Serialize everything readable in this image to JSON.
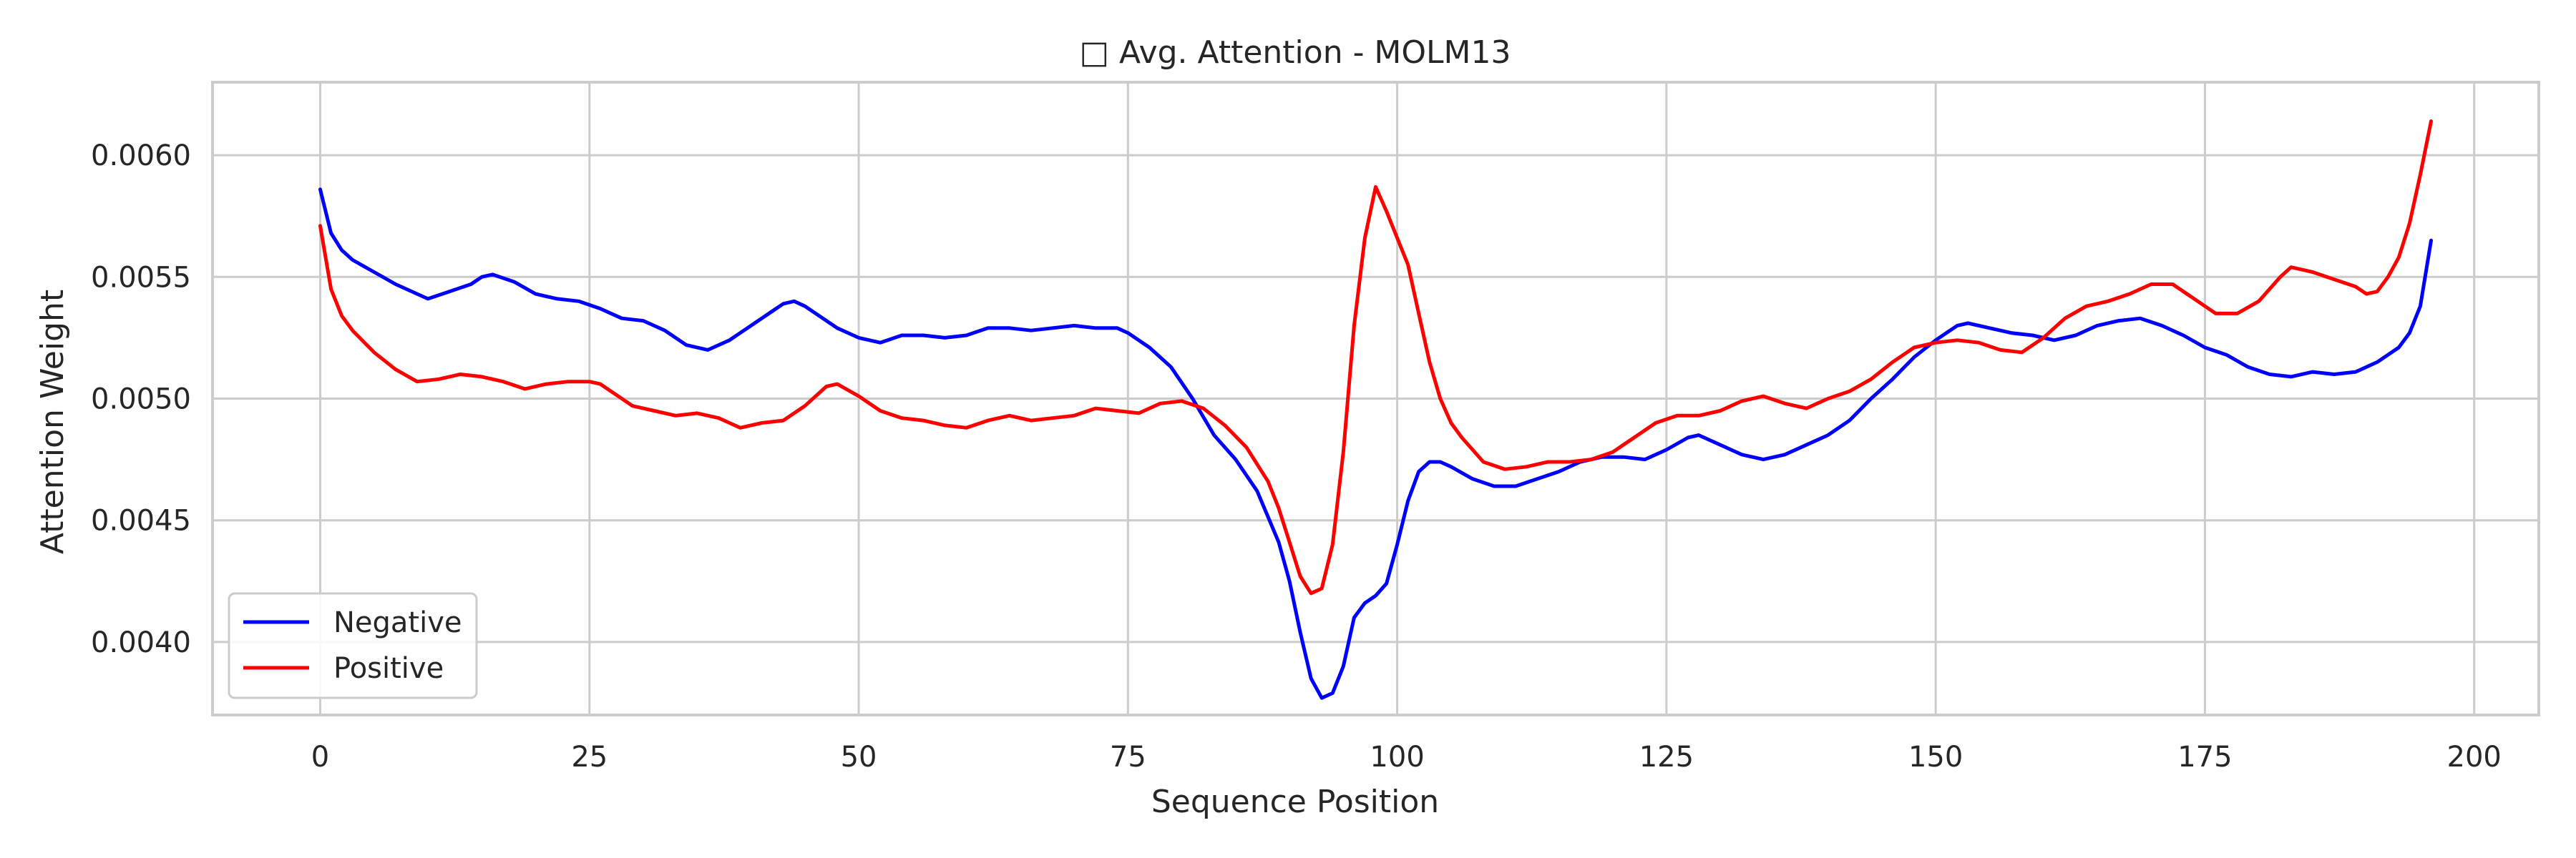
{
  "chart_data": {
    "type": "line",
    "title": "□ Avg. Attention - MOLM13",
    "xlabel": "Sequence Position",
    "ylabel": "Attention Weight",
    "xlim": [
      -10,
      206
    ],
    "ylim": [
      0.0037,
      0.0063
    ],
    "xticks": [
      0,
      25,
      50,
      75,
      100,
      125,
      150,
      175,
      200
    ],
    "xtick_labels": [
      "0",
      "25",
      "50",
      "75",
      "100",
      "125",
      "150",
      "175",
      "200"
    ],
    "yticks": [
      0.004,
      0.0045,
      0.005,
      0.0055,
      0.006
    ],
    "ytick_labels": [
      "0.0040",
      "0.0045",
      "0.0050",
      "0.0055",
      "0.0060"
    ],
    "grid": true,
    "legend_position": "lower-left",
    "series": [
      {
        "name": "Negative",
        "color": "#0000ff",
        "points": [
          [
            0,
            0.00586
          ],
          [
            1,
            0.00568
          ],
          [
            2,
            0.00561
          ],
          [
            3,
            0.00557
          ],
          [
            5,
            0.00552
          ],
          [
            7,
            0.00547
          ],
          [
            9,
            0.00543
          ],
          [
            10,
            0.00541
          ],
          [
            12,
            0.00544
          ],
          [
            14,
            0.00547
          ],
          [
            15,
            0.0055
          ],
          [
            16,
            0.00551
          ],
          [
            18,
            0.00548
          ],
          [
            20,
            0.00543
          ],
          [
            22,
            0.00541
          ],
          [
            24,
            0.0054
          ],
          [
            26,
            0.00537
          ],
          [
            28,
            0.00533
          ],
          [
            30,
            0.00532
          ],
          [
            32,
            0.00528
          ],
          [
            34,
            0.00522
          ],
          [
            36,
            0.0052
          ],
          [
            38,
            0.00524
          ],
          [
            40,
            0.0053
          ],
          [
            42,
            0.00536
          ],
          [
            43,
            0.00539
          ],
          [
            44,
            0.0054
          ],
          [
            45,
            0.00538
          ],
          [
            46,
            0.00535
          ],
          [
            48,
            0.00529
          ],
          [
            50,
            0.00525
          ],
          [
            52,
            0.00523
          ],
          [
            54,
            0.00526
          ],
          [
            56,
            0.00526
          ],
          [
            58,
            0.00525
          ],
          [
            60,
            0.00526
          ],
          [
            62,
            0.00529
          ],
          [
            64,
            0.00529
          ],
          [
            66,
            0.00528
          ],
          [
            68,
            0.00529
          ],
          [
            70,
            0.0053
          ],
          [
            72,
            0.00529
          ],
          [
            74,
            0.00529
          ],
          [
            75,
            0.00527
          ],
          [
            77,
            0.00521
          ],
          [
            79,
            0.00513
          ],
          [
            81,
            0.005
          ],
          [
            83,
            0.00485
          ],
          [
            85,
            0.00475
          ],
          [
            87,
            0.00462
          ],
          [
            89,
            0.00441
          ],
          [
            90,
            0.00425
          ],
          [
            91,
            0.00404
          ],
          [
            92,
            0.00385
          ],
          [
            93,
            0.00377
          ],
          [
            94,
            0.00379
          ],
          [
            95,
            0.0039
          ],
          [
            96,
            0.0041
          ],
          [
            97,
            0.00416
          ],
          [
            98,
            0.00419
          ],
          [
            99,
            0.00424
          ],
          [
            100,
            0.0044
          ],
          [
            101,
            0.00458
          ],
          [
            102,
            0.0047
          ],
          [
            103,
            0.00474
          ],
          [
            104,
            0.00474
          ],
          [
            105,
            0.00472
          ],
          [
            107,
            0.00467
          ],
          [
            109,
            0.00464
          ],
          [
            111,
            0.00464
          ],
          [
            113,
            0.00467
          ],
          [
            115,
            0.0047
          ],
          [
            117,
            0.00474
          ],
          [
            119,
            0.00476
          ],
          [
            121,
            0.00476
          ],
          [
            123,
            0.00475
          ],
          [
            125,
            0.00479
          ],
          [
            127,
            0.00484
          ],
          [
            128,
            0.00485
          ],
          [
            130,
            0.00481
          ],
          [
            132,
            0.00477
          ],
          [
            134,
            0.00475
          ],
          [
            136,
            0.00477
          ],
          [
            138,
            0.00481
          ],
          [
            140,
            0.00485
          ],
          [
            142,
            0.00491
          ],
          [
            144,
            0.005
          ],
          [
            146,
            0.00508
          ],
          [
            148,
            0.00517
          ],
          [
            150,
            0.00524
          ],
          [
            151,
            0.00527
          ],
          [
            152,
            0.0053
          ],
          [
            153,
            0.00531
          ],
          [
            155,
            0.00529
          ],
          [
            157,
            0.00527
          ],
          [
            159,
            0.00526
          ],
          [
            161,
            0.00524
          ],
          [
            163,
            0.00526
          ],
          [
            165,
            0.0053
          ],
          [
            167,
            0.00532
          ],
          [
            169,
            0.00533
          ],
          [
            171,
            0.0053
          ],
          [
            173,
            0.00526
          ],
          [
            175,
            0.00521
          ],
          [
            177,
            0.00518
          ],
          [
            179,
            0.00513
          ],
          [
            181,
            0.0051
          ],
          [
            183,
            0.00509
          ],
          [
            185,
            0.00511
          ],
          [
            187,
            0.0051
          ],
          [
            189,
            0.00511
          ],
          [
            191,
            0.00515
          ],
          [
            193,
            0.00521
          ],
          [
            194,
            0.00527
          ],
          [
            195,
            0.00538
          ],
          [
            196,
            0.00565
          ]
        ]
      },
      {
        "name": "Positive",
        "color": "#ff0000",
        "points": [
          [
            0,
            0.00571
          ],
          [
            1,
            0.00545
          ],
          [
            2,
            0.00534
          ],
          [
            3,
            0.00528
          ],
          [
            5,
            0.00519
          ],
          [
            7,
            0.00512
          ],
          [
            9,
            0.00507
          ],
          [
            11,
            0.00508
          ],
          [
            13,
            0.0051
          ],
          [
            15,
            0.00509
          ],
          [
            17,
            0.00507
          ],
          [
            19,
            0.00504
          ],
          [
            21,
            0.00506
          ],
          [
            23,
            0.00507
          ],
          [
            25,
            0.00507
          ],
          [
            26,
            0.00506
          ],
          [
            27,
            0.00503
          ],
          [
            29,
            0.00497
          ],
          [
            31,
            0.00495
          ],
          [
            33,
            0.00493
          ],
          [
            35,
            0.00494
          ],
          [
            37,
            0.00492
          ],
          [
            39,
            0.00488
          ],
          [
            41,
            0.0049
          ],
          [
            43,
            0.00491
          ],
          [
            45,
            0.00497
          ],
          [
            47,
            0.00505
          ],
          [
            48,
            0.00506
          ],
          [
            50,
            0.00501
          ],
          [
            52,
            0.00495
          ],
          [
            54,
            0.00492
          ],
          [
            56,
            0.00491
          ],
          [
            58,
            0.00489
          ],
          [
            60,
            0.00488
          ],
          [
            62,
            0.00491
          ],
          [
            64,
            0.00493
          ],
          [
            66,
            0.00491
          ],
          [
            68,
            0.00492
          ],
          [
            70,
            0.00493
          ],
          [
            72,
            0.00496
          ],
          [
            74,
            0.00495
          ],
          [
            76,
            0.00494
          ],
          [
            78,
            0.00498
          ],
          [
            80,
            0.00499
          ],
          [
            82,
            0.00496
          ],
          [
            84,
            0.00489
          ],
          [
            86,
            0.0048
          ],
          [
            88,
            0.00466
          ],
          [
            89,
            0.00455
          ],
          [
            90,
            0.00441
          ],
          [
            91,
            0.00427
          ],
          [
            92,
            0.0042
          ],
          [
            93,
            0.00422
          ],
          [
            94,
            0.0044
          ],
          [
            95,
            0.00478
          ],
          [
            96,
            0.0053
          ],
          [
            97,
            0.00566
          ],
          [
            98,
            0.00587
          ],
          [
            99,
            0.00577
          ],
          [
            100,
            0.00566
          ],
          [
            101,
            0.00555
          ],
          [
            102,
            0.00535
          ],
          [
            103,
            0.00515
          ],
          [
            104,
            0.005
          ],
          [
            105,
            0.0049
          ],
          [
            106,
            0.00484
          ],
          [
            107,
            0.00479
          ],
          [
            108,
            0.00474
          ],
          [
            110,
            0.00471
          ],
          [
            112,
            0.00472
          ],
          [
            114,
            0.00474
          ],
          [
            116,
            0.00474
          ],
          [
            118,
            0.00475
          ],
          [
            120,
            0.00478
          ],
          [
            122,
            0.00484
          ],
          [
            124,
            0.0049
          ],
          [
            126,
            0.00493
          ],
          [
            128,
            0.00493
          ],
          [
            130,
            0.00495
          ],
          [
            132,
            0.00499
          ],
          [
            134,
            0.00501
          ],
          [
            136,
            0.00498
          ],
          [
            138,
            0.00496
          ],
          [
            140,
            0.005
          ],
          [
            142,
            0.00503
          ],
          [
            144,
            0.00508
          ],
          [
            146,
            0.00515
          ],
          [
            148,
            0.00521
          ],
          [
            150,
            0.00523
          ],
          [
            152,
            0.00524
          ],
          [
            154,
            0.00523
          ],
          [
            156,
            0.0052
          ],
          [
            158,
            0.00519
          ],
          [
            160,
            0.00525
          ],
          [
            162,
            0.00533
          ],
          [
            164,
            0.00538
          ],
          [
            166,
            0.0054
          ],
          [
            168,
            0.00543
          ],
          [
            170,
            0.00547
          ],
          [
            172,
            0.00547
          ],
          [
            174,
            0.00541
          ],
          [
            176,
            0.00535
          ],
          [
            178,
            0.00535
          ],
          [
            180,
            0.0054
          ],
          [
            182,
            0.0055
          ],
          [
            183,
            0.00554
          ],
          [
            185,
            0.00552
          ],
          [
            187,
            0.00549
          ],
          [
            189,
            0.00546
          ],
          [
            190,
            0.00543
          ],
          [
            191,
            0.00544
          ],
          [
            192,
            0.0055
          ],
          [
            193,
            0.00558
          ],
          [
            194,
            0.00572
          ],
          [
            195,
            0.00592
          ],
          [
            196,
            0.00614
          ]
        ]
      }
    ]
  }
}
